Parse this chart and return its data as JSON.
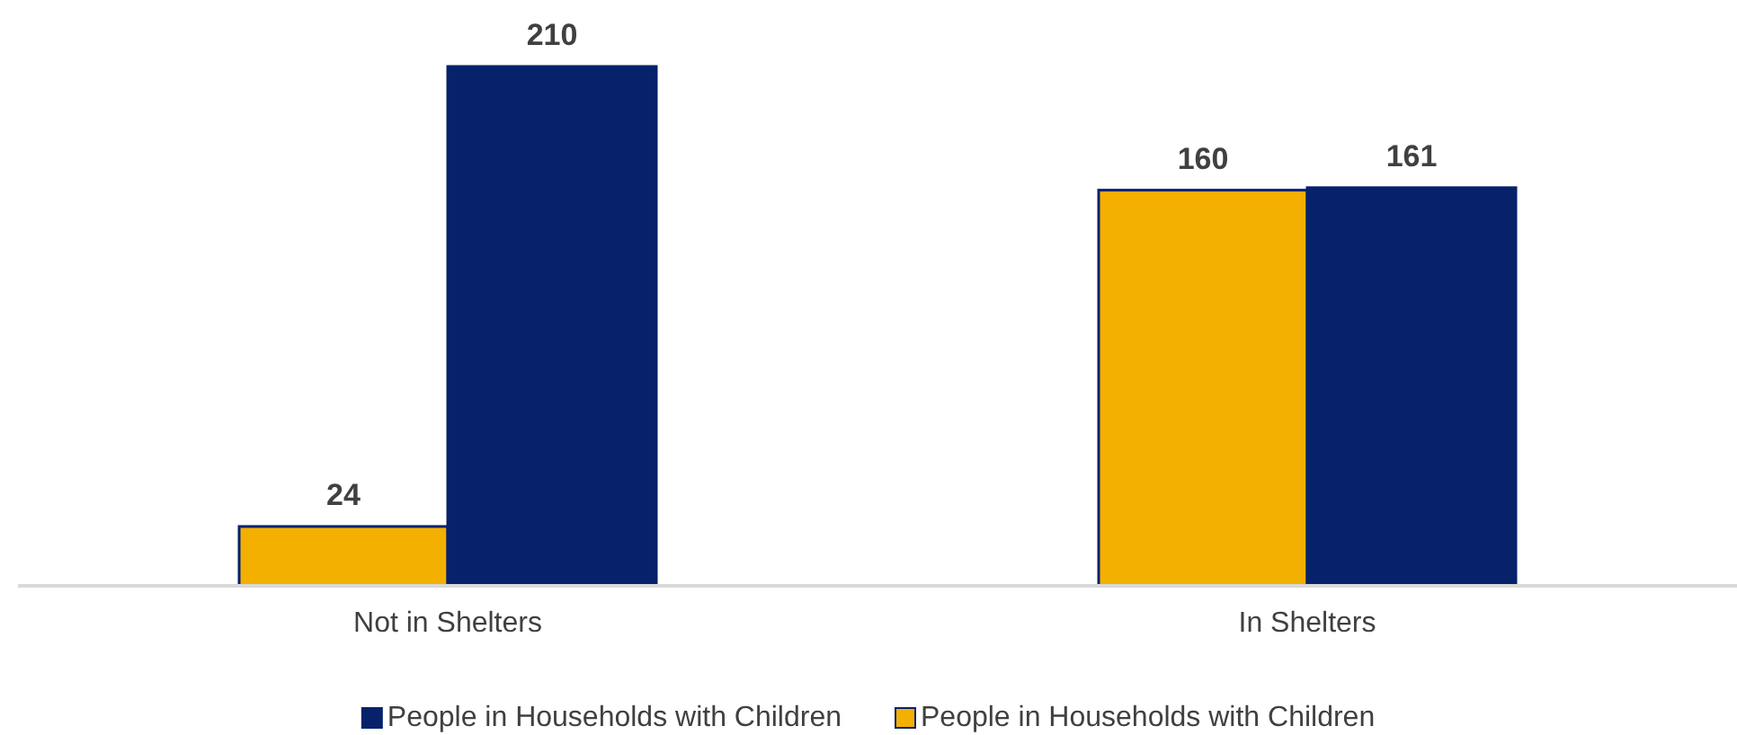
{
  "chart_data": {
    "type": "bar",
    "categories": [
      "Not in Shelters",
      "In Shelters"
    ],
    "series": [
      {
        "name": "People in Households with Children",
        "color": "#f4b000",
        "values": [
          24,
          160
        ]
      },
      {
        "name": "People in Households with Children",
        "color": "#07226b",
        "values": [
          210,
          161
        ]
      }
    ],
    "data_labels": true,
    "legend": "bottom"
  }
}
